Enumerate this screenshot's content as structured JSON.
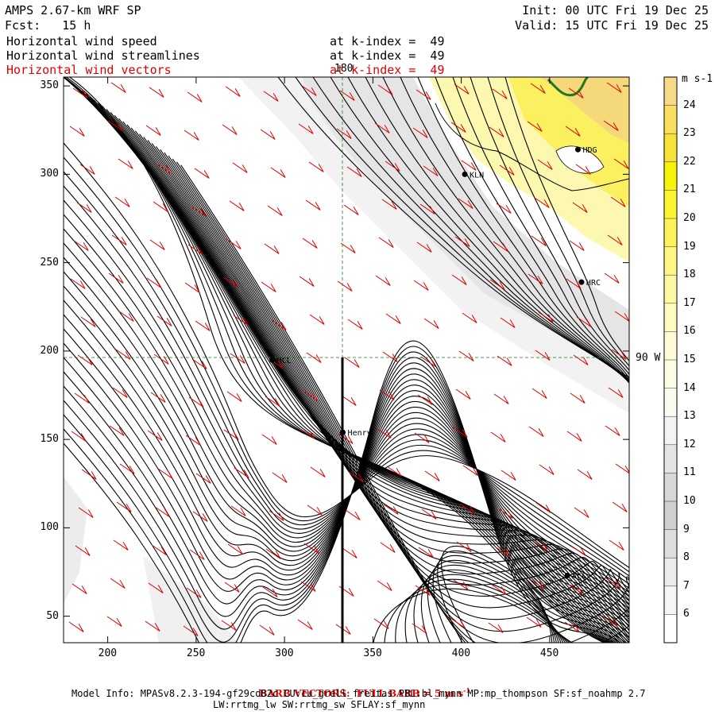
{
  "header": {
    "model": "AMPS 2.67-km WRF SP",
    "fcst": "Fcst:   15 h",
    "init": "Init: 00 UTC Fri 19 Dec 25",
    "valid": "Valid: 15 UTC Fri 19 Dec 25",
    "fields": [
      {
        "name": "Horizontal wind speed",
        "level": "at k-index =  49"
      },
      {
        "name": "Horizontal wind streamlines",
        "level": "at k-index =  49"
      },
      {
        "name": "Horizontal wind vectors",
        "level": "at k-index =  49"
      }
    ]
  },
  "chart_data": {
    "type": "map",
    "x_ticks": [
      "200",
      "250",
      "300",
      "350",
      "400",
      "450"
    ],
    "y_ticks": [
      "50",
      "100",
      "150",
      "200",
      "250",
      "300",
      "350"
    ],
    "xlim": [
      175,
      495
    ],
    "ylim": [
      35,
      355
    ],
    "gridlines": {
      "meridian_top_label": "180",
      "parallel_right_label": "90 W"
    },
    "stations": [
      {
        "name": "KLN",
        "x": 402,
        "y": 300
      },
      {
        "name": "HDG",
        "x": 466,
        "y": 314
      },
      {
        "name": "HRC",
        "x": 468,
        "y": 239
      },
      {
        "name": "MCL",
        "x": 293,
        "y": 195
      },
      {
        "name": "Henry",
        "x": 333,
        "y": 154
      },
      {
        "name": "ACS",
        "x": 460,
        "y": 73
      }
    ],
    "colorbar": {
      "unit": "m s-1",
      "labels": [
        "24",
        "23",
        "22",
        "21",
        "20",
        "19",
        "18",
        "17",
        "16",
        "15",
        "14",
        "13",
        "12",
        "11",
        "10",
        "9",
        "8",
        "7",
        "6"
      ],
      "colors": [
        "#f7d98a",
        "#fadf5e",
        "#f6e23a",
        "#f8f20c",
        "#fbf430",
        "#fcf35c",
        "#fdf684",
        "#fdf8a4",
        "#fefac0",
        "#fefbd6",
        "#fdfde6",
        "#fbfbf2",
        "#f3f3f3",
        "#e4e4e4",
        "#d8d8d8",
        "#cfcfcf",
        "#dedede",
        "#ebebeb",
        "#f5f5f5",
        "#ffffff"
      ]
    }
  },
  "footer": {
    "barb_note": "BARB VECTORS:  FULL BARB = 5 m s",
    "barb_sup": "-1",
    "model_info": "Model Info: MPASv8.2.3-194-gf29cd82c CU:cu_grell_freitas PBL:bl_mynn MP:mp_thompson SF:sf_noahmp 2.7",
    "model_info2": "LW:rrtmg_lw SW:rrtmg_sw SFLAY:sf_mynn"
  }
}
